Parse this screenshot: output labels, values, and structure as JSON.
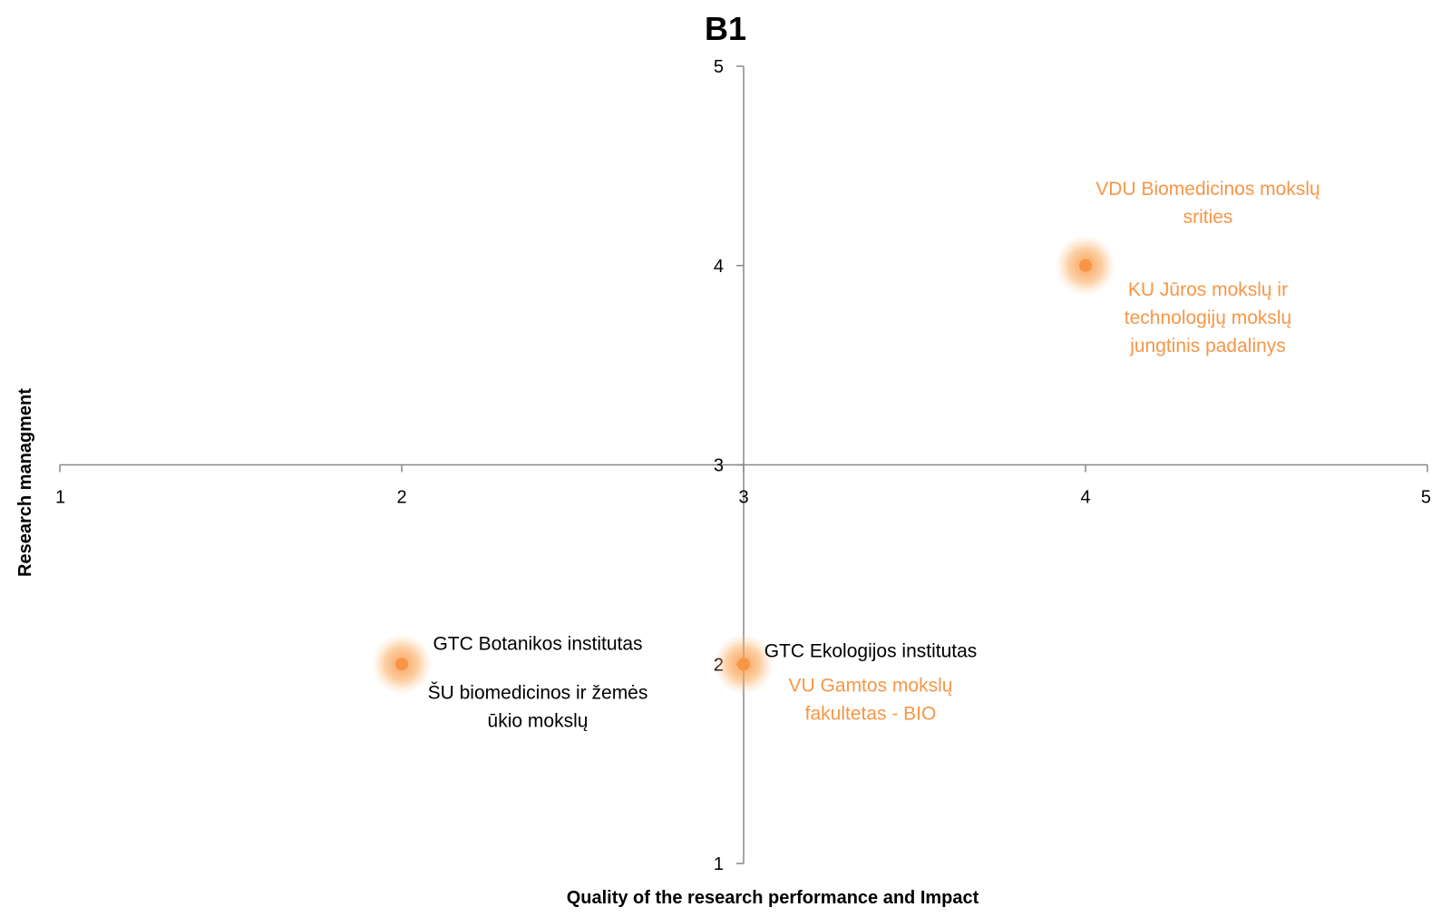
{
  "chart_data": {
    "type": "scatter",
    "title": "B1",
    "xlabel": "Quality of the research performance and Impact",
    "ylabel": "Research managment",
    "xlim": [
      1,
      5
    ],
    "ylim": [
      1,
      5
    ],
    "x_ticks": [
      "1",
      "2",
      "3",
      "4",
      "5"
    ],
    "y_ticks": [
      "1",
      "2",
      "3",
      "4",
      "5"
    ],
    "axes_cross_at": {
      "x": 3,
      "y": 3
    },
    "grid": false,
    "legend": "none",
    "colors": {
      "point": "#f79646",
      "axis": "#878787",
      "label_dark": "#000000",
      "label_accent": "#f79646"
    },
    "points": [
      {
        "x": 4,
        "y": 4,
        "labels": [
          {
            "text": "VDU Biomedicinos mokslų srities",
            "lines": [
              "VDU Biomedicinos mokslų",
              "srities"
            ],
            "color": "accent",
            "pos": "above"
          },
          {
            "text": "KU Jūros mokslų ir technologijų mokslų jungtinis padalinys",
            "lines": [
              "KU Jūros mokslų ir",
              "technologijų mokslų",
              "jungtinis padalinys"
            ],
            "color": "accent",
            "pos": "below"
          }
        ]
      },
      {
        "x": 2,
        "y": 2,
        "labels": [
          {
            "text": "GTC Botanikos institutas",
            "lines": [
              "GTC Botanikos institutas"
            ],
            "color": "dark",
            "pos": "above"
          },
          {
            "text": "ŠU biomedicinos ir žemės ūkio mokslų",
            "lines": [
              "ŠU biomedicinos ir žemės",
              "ūkio mokslų"
            ],
            "color": "dark",
            "pos": "below"
          }
        ]
      },
      {
        "x": 3,
        "y": 2,
        "labels": [
          {
            "text": "GTC Ekologijos institutas",
            "lines": [
              "GTC Ekologijos institutas"
            ],
            "color": "dark",
            "pos": "above"
          },
          {
            "text": "VU Gamtos mokslų fakultetas - BIO",
            "lines": [
              "VU Gamtos mokslų",
              "fakultetas - BIO"
            ],
            "color": "accent",
            "pos": "below"
          }
        ]
      }
    ]
  }
}
